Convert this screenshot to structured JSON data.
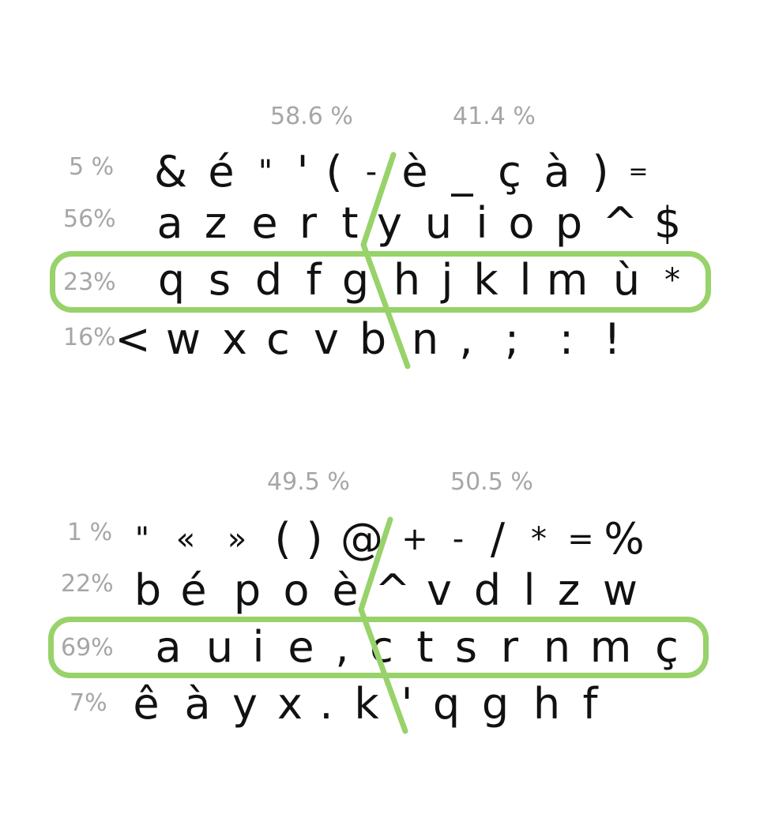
{
  "accent_color": "#98d26a",
  "azerty": {
    "hand_split": [
      "58.6 %",
      "41.4 %"
    ],
    "row_percentages": [
      "5 %",
      "56%",
      "23%",
      "16%"
    ],
    "rows": [
      [
        "&",
        "é",
        "\"",
        "'",
        "(",
        "-",
        "è",
        "_",
        "ç",
        "à",
        ")",
        "="
      ],
      [
        "a",
        "z",
        "e",
        "r",
        "t",
        "y",
        "u",
        "i",
        "o",
        "p",
        "^",
        "$"
      ],
      [
        "q",
        "s",
        "d",
        "f",
        "g",
        "h",
        "j",
        "k",
        "l",
        "m",
        "ù",
        "*"
      ],
      [
        "<",
        "w",
        "x",
        "c",
        "v",
        "b",
        "n",
        ",",
        ";",
        ":",
        "!"
      ]
    ]
  },
  "bepo": {
    "hand_split": [
      "49.5 %",
      "50.5 %"
    ],
    "row_percentages": [
      "1 %",
      "22%",
      "69%",
      "7%"
    ],
    "rows": [
      [
        "\"",
        "«",
        "»",
        "(",
        ")",
        "@",
        "+",
        "-",
        "/",
        "*",
        "=",
        "%"
      ],
      [
        "b",
        "é",
        "p",
        "o",
        "è",
        "^",
        "v",
        "d",
        "l",
        "z",
        "w"
      ],
      [
        "a",
        "u",
        "i",
        "e",
        ",",
        "c",
        "t",
        "s",
        "r",
        "n",
        "m",
        "ç"
      ],
      [
        "ê",
        "à",
        "y",
        "x",
        ".",
        "k",
        "'",
        "q",
        "g",
        "h",
        "f"
      ]
    ]
  }
}
